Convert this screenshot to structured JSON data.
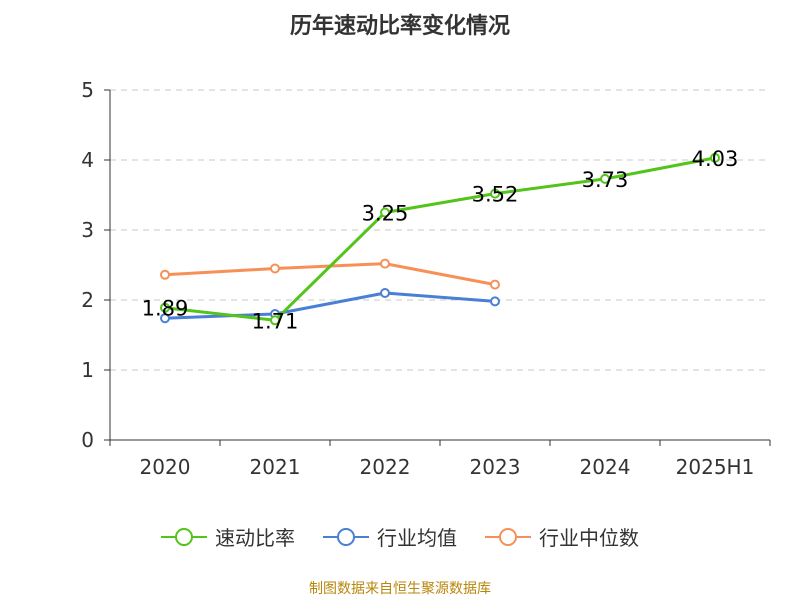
{
  "chart_data": {
    "type": "line",
    "title": "历年速动比率变化情况",
    "categories": [
      "2020",
      "2021",
      "2022",
      "2023",
      "2024",
      "2025H1"
    ],
    "ylim": [
      0,
      5
    ],
    "yticks": [
      0,
      1,
      2,
      3,
      4,
      5
    ],
    "grid": true,
    "legend_position": "bottom",
    "series": [
      {
        "name": "速动比率",
        "color": "#52c41a",
        "values": [
          1.89,
          1.71,
          3.25,
          3.52,
          3.73,
          4.03
        ],
        "labels": [
          "1.89",
          "1.71",
          "3.25",
          "3.52",
          "3.73",
          "4.03"
        ]
      },
      {
        "name": "行业均值",
        "color": "#4a7fd6",
        "values": [
          1.74,
          1.8,
          2.1,
          1.98,
          null,
          null
        ]
      },
      {
        "name": "行业中位数",
        "color": "#f79056",
        "values": [
          2.36,
          2.45,
          2.52,
          2.22,
          null,
          null
        ]
      }
    ]
  },
  "source": "制图数据来自恒生聚源数据库"
}
